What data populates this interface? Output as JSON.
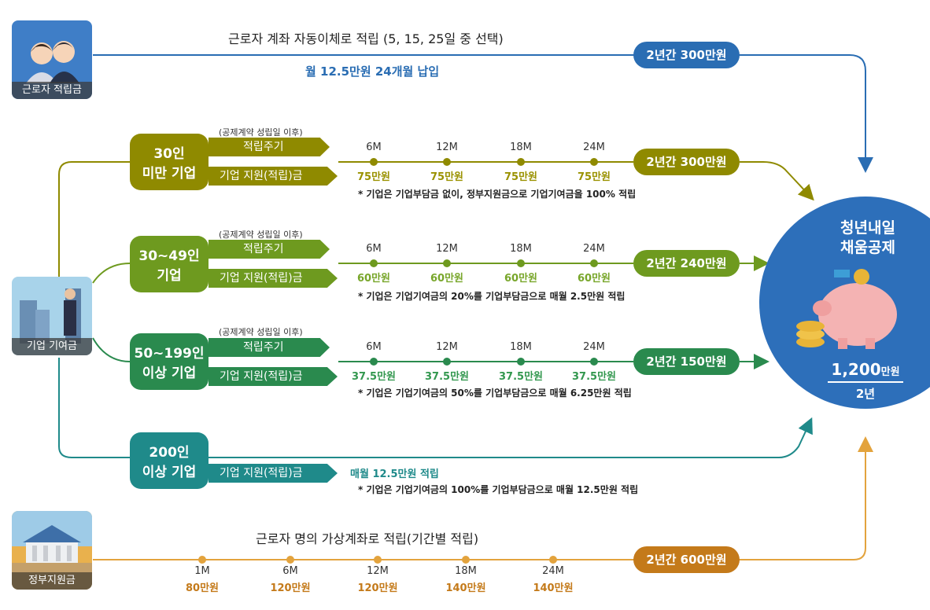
{
  "worker": {
    "tile_label": "근로자 적립금",
    "title": "근로자 계좌 자동이체로 적립 (5, 15, 25일 중 선택)",
    "subtitle": "월 12.5만원 24개월 납입",
    "total": "2년간 300만원",
    "color": "#2a6db3"
  },
  "company_tile_label": "기업 기여금",
  "gov": {
    "tile_label": "정부지원금",
    "title": "근로자 명의 가상계좌로 적립(기간별 적립)",
    "total": "2년간 600만원",
    "color": "#e3a33d",
    "points": [
      {
        "month": "1M",
        "amount": "80만원"
      },
      {
        "month": "6M",
        "amount": "120만원"
      },
      {
        "month": "12M",
        "amount": "120만원"
      },
      {
        "month": "18M",
        "amount": "140만원"
      },
      {
        "month": "24M",
        "amount": "140만원"
      }
    ]
  },
  "tiers": [
    {
      "label_line1": "30인",
      "label_line2": "미만 기업",
      "condition": "(공제계약 성립일 이후)",
      "cycle_label": "적립주기",
      "support_label": "기업 지원(적립)금",
      "months": [
        "6M",
        "12M",
        "18M",
        "24M"
      ],
      "amounts": [
        "75만원",
        "75만원",
        "75만원",
        "75만원"
      ],
      "total": "2년간 300만원",
      "note": "* 기업은 기업부담금 없이, 정부지원금으로 기업기여금을 100% 적립",
      "color": "#8f8a00",
      "light": "#9a9200"
    },
    {
      "label_line1": "30~49인",
      "label_line2": "기업",
      "condition": "(공제계약 성립일 이후)",
      "cycle_label": "적립주기",
      "support_label": "기업 지원(적립)금",
      "months": [
        "6M",
        "12M",
        "18M",
        "24M"
      ],
      "amounts": [
        "60만원",
        "60만원",
        "60만원",
        "60만원"
      ],
      "total": "2년간 240만원",
      "note": "* 기업은 기업기여금의 20%를 기업부담금으로 매월 2.5만원 적립",
      "color": "#6e9a1f",
      "light": "#78a62a"
    },
    {
      "label_line1": "50~199인",
      "label_line2": "이상 기업",
      "condition": "(공제계약 성립일 이후)",
      "cycle_label": "적립주기",
      "support_label": "기업 지원(적립)금",
      "months": [
        "6M",
        "12M",
        "18M",
        "24M"
      ],
      "amounts": [
        "37.5만원",
        "37.5만원",
        "37.5만원",
        "37.5만원"
      ],
      "total": "2년간 150만원",
      "note": "* 기업은 기업기여금의 50%를 기업부담금으로 매월 6.25만원 적립",
      "color": "#2a8a4e",
      "light": "#33984f"
    }
  ],
  "tier200": {
    "label_line1": "200인",
    "label_line2": "이상 기업",
    "support_label": "기업 지원(적립)금",
    "monthly": "매월 12.5만원 적립",
    "note": "* 기업은 기업기여금의 100%를 기업부담금으로 매월 12.5만원 적립",
    "color": "#1f8a8a"
  },
  "result": {
    "title_line1": "청년내일",
    "title_line2": "채움공제",
    "amount_number": "1,200",
    "amount_unit": "만원",
    "period": "2년",
    "color": "#2d6fba"
  }
}
